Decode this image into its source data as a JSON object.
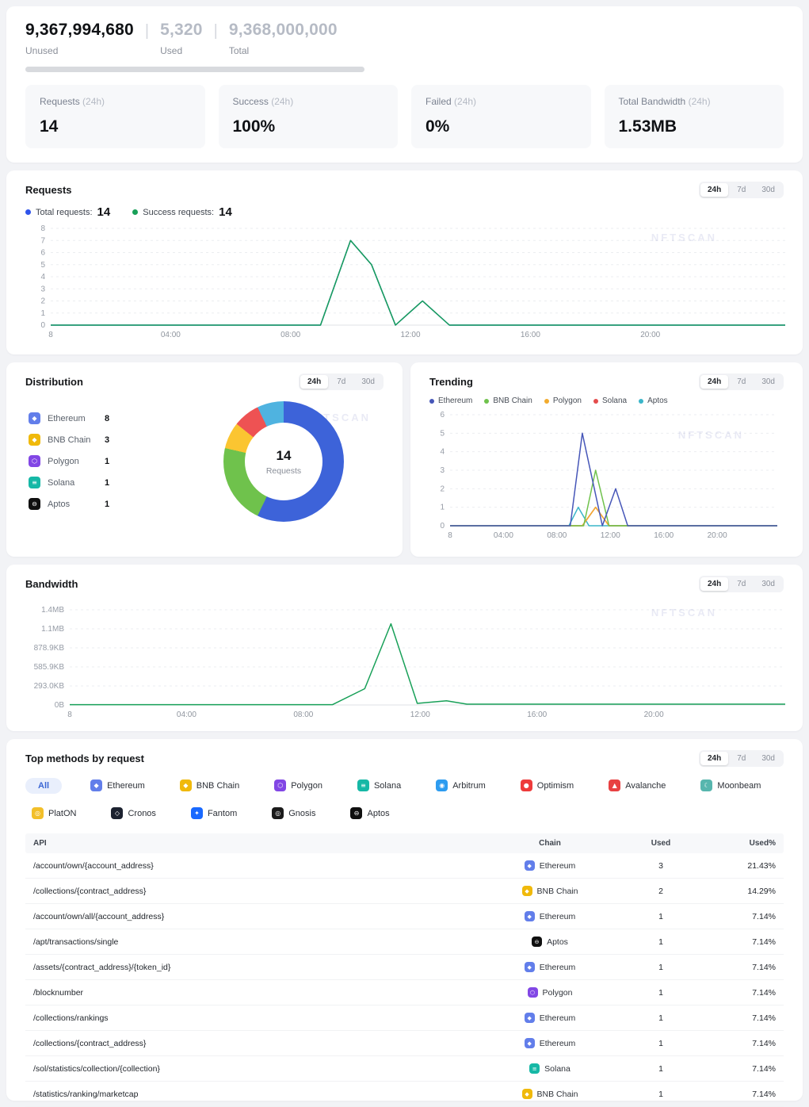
{
  "time_ranges": [
    "24h",
    "7d",
    "30d"
  ],
  "quota": {
    "unused": "9,367,994,680",
    "unused_label": "Unused",
    "used": "5,320",
    "used_label": "Used",
    "total": "9,368,000,000",
    "total_label": "Total",
    "separator": "|",
    "used_percent": 0
  },
  "stats": [
    {
      "label": "Requests",
      "suffix": " (24h)",
      "value": "14"
    },
    {
      "label": "Success",
      "suffix": " (24h)",
      "value": "100%"
    },
    {
      "label": "Failed",
      "suffix": " (24h)",
      "value": "0%"
    },
    {
      "label": "Total Bandwidth",
      "suffix": " (24h)",
      "value": "1.53MB"
    }
  ],
  "requests_panel": {
    "title": "Requests",
    "active_range": "24h",
    "watermark": "NFTSCAN",
    "legend": [
      {
        "label": "Total requests:",
        "value": "14",
        "color": "#2f54eb"
      },
      {
        "label": "Success requests:",
        "value": "14",
        "color": "#18a058"
      }
    ],
    "chart": {
      "type": "line",
      "x_range": [
        0,
        24.5
      ],
      "y_range": [
        0,
        8
      ],
      "x_ticks": [
        {
          "v": 0,
          "label": "8"
        },
        {
          "v": 4,
          "label": "04:00"
        },
        {
          "v": 8,
          "label": "08:00"
        },
        {
          "v": 12,
          "label": "12:00"
        },
        {
          "v": 16,
          "label": "16:00"
        },
        {
          "v": 20,
          "label": "20:00"
        }
      ],
      "y_ticks": [
        {
          "v": 0,
          "label": "0"
        },
        {
          "v": 1,
          "label": "1"
        },
        {
          "v": 2,
          "label": "2"
        },
        {
          "v": 3,
          "label": "3"
        },
        {
          "v": 4,
          "label": "4"
        },
        {
          "v": 5,
          "label": "5"
        },
        {
          "v": 6,
          "label": "6"
        },
        {
          "v": 7,
          "label": "7"
        },
        {
          "v": 8,
          "label": "8"
        }
      ],
      "series": [
        {
          "name": "Total requests",
          "color": "#2f54eb",
          "points": [
            [
              0,
              0
            ],
            [
              9,
              0
            ],
            [
              10,
              7
            ],
            [
              10.7,
              5
            ],
            [
              11.5,
              0
            ],
            [
              12.4,
              2
            ],
            [
              13.3,
              0
            ],
            [
              24.5,
              0
            ]
          ]
        },
        {
          "name": "Success requests",
          "color": "#18a058",
          "points": [
            [
              0,
              0
            ],
            [
              9,
              0
            ],
            [
              10,
              7
            ],
            [
              10.7,
              5
            ],
            [
              11.5,
              0
            ],
            [
              12.4,
              2
            ],
            [
              13.3,
              0
            ],
            [
              24.5,
              0
            ]
          ]
        }
      ]
    }
  },
  "distribution_panel": {
    "title": "Distribution",
    "active_range": "24h",
    "watermark": "NFTSCAN",
    "center_value": "14",
    "center_label": "Requests",
    "chart": {
      "type": "pie",
      "items": [
        {
          "name": "Ethereum",
          "value": 8,
          "slice_color": "#3d63d9"
        },
        {
          "name": "BNB Chain",
          "value": 3,
          "slice_color": "#6fc24c"
        },
        {
          "name": "Polygon",
          "value": 1,
          "slice_color": "#fbc531"
        },
        {
          "name": "Solana",
          "value": 1,
          "slice_color": "#ee5253"
        },
        {
          "name": "Aptos",
          "value": 1,
          "slice_color": "#4fb3e0"
        }
      ]
    }
  },
  "trending_panel": {
    "title": "Trending",
    "active_range": "24h",
    "watermark": "NFTSCAN",
    "chart": {
      "type": "line",
      "x_range": [
        0,
        24.5
      ],
      "y_range": [
        0,
        6
      ],
      "x_ticks": [
        {
          "v": 0,
          "label": "8"
        },
        {
          "v": 4,
          "label": "04:00"
        },
        {
          "v": 8,
          "label": "08:00"
        },
        {
          "v": 12,
          "label": "12:00"
        },
        {
          "v": 16,
          "label": "16:00"
        },
        {
          "v": 20,
          "label": "20:00"
        }
      ],
      "y_ticks": [
        {
          "v": 0,
          "label": "0"
        },
        {
          "v": 1,
          "label": "1"
        },
        {
          "v": 2,
          "label": "2"
        },
        {
          "v": 3,
          "label": "3"
        },
        {
          "v": 4,
          "label": "4"
        },
        {
          "v": 5,
          "label": "5"
        },
        {
          "v": 6,
          "label": "6"
        }
      ],
      "series": [
        {
          "name": "Solana",
          "color": "#e44c4c",
          "points": [
            [
              0,
              0
            ],
            [
              9.9,
              0
            ],
            [
              10.9,
              1
            ],
            [
              11.9,
              0
            ],
            [
              24.5,
              0
            ]
          ]
        },
        {
          "name": "Aptos",
          "color": "#3ab5c9",
          "points": [
            [
              0,
              0
            ],
            [
              8.9,
              0
            ],
            [
              9.6,
              1
            ],
            [
              10.4,
              0
            ],
            [
              24.5,
              0
            ]
          ]
        },
        {
          "name": "Polygon",
          "color": "#f2ab2e",
          "points": [
            [
              0,
              0
            ],
            [
              9.9,
              0
            ],
            [
              10.9,
              1
            ],
            [
              11.9,
              0
            ],
            [
              24.5,
              0
            ]
          ]
        },
        {
          "name": "BNB Chain",
          "color": "#6fc24c",
          "points": [
            [
              0,
              0
            ],
            [
              10,
              0
            ],
            [
              10.9,
              3
            ],
            [
              11.9,
              0
            ],
            [
              24.5,
              0
            ]
          ]
        },
        {
          "name": "Ethereum",
          "color": "#4656b8",
          "points": [
            [
              0,
              0
            ],
            [
              9,
              0
            ],
            [
              9.9,
              5
            ],
            [
              11.4,
              0
            ],
            [
              12.4,
              2
            ],
            [
              13.3,
              0
            ],
            [
              24.5,
              0
            ]
          ]
        }
      ],
      "legend_order": [
        "Ethereum",
        "BNB Chain",
        "Polygon",
        "Solana",
        "Aptos"
      ]
    }
  },
  "bandwidth_panel": {
    "title": "Bandwidth",
    "active_range": "24h",
    "watermark": "NFTSCAN",
    "chart": {
      "type": "line",
      "x_range": [
        0,
        24.5
      ],
      "y_range": [
        0,
        1465
      ],
      "x_ticks": [
        {
          "v": 0,
          "label": "8"
        },
        {
          "v": 4,
          "label": "04:00"
        },
        {
          "v": 8,
          "label": "08:00"
        },
        {
          "v": 12,
          "label": "12:00"
        },
        {
          "v": 16,
          "label": "16:00"
        },
        {
          "v": 20,
          "label": "20:00"
        }
      ],
      "y_ticks": [
        {
          "v": 0,
          "label": "0B"
        },
        {
          "v": 293,
          "label": "293.0KB"
        },
        {
          "v": 586,
          "label": "585.9KB"
        },
        {
          "v": 879,
          "label": "878.9KB"
        },
        {
          "v": 1172,
          "label": "1.1MB"
        },
        {
          "v": 1465,
          "label": "1.4MB"
        }
      ],
      "series": [
        {
          "name": "Bandwidth",
          "color": "#18a058",
          "points": [
            [
              0,
              5
            ],
            [
              9,
              5
            ],
            [
              10.1,
              250
            ],
            [
              11,
              1250
            ],
            [
              11.9,
              25
            ],
            [
              12.9,
              65
            ],
            [
              13.6,
              12
            ],
            [
              24.5,
              12
            ]
          ]
        }
      ]
    }
  },
  "methods_panel": {
    "title": "Top methods by request",
    "active_range": "24h",
    "chips": [
      {
        "label": "All",
        "active": true
      },
      {
        "label": "Ethereum"
      },
      {
        "label": "BNB Chain"
      },
      {
        "label": "Polygon"
      },
      {
        "label": "Solana"
      },
      {
        "label": "Arbitrum"
      },
      {
        "label": "Optimism"
      },
      {
        "label": "Avalanche"
      },
      {
        "label": "Moonbeam"
      },
      {
        "label": "PlatON"
      },
      {
        "label": "Cronos"
      },
      {
        "label": "Fantom"
      },
      {
        "label": "Gnosis"
      },
      {
        "label": "Aptos"
      }
    ],
    "table": {
      "headers": [
        "API",
        "Chain",
        "Used",
        "Used%"
      ],
      "rows": [
        {
          "api": "/account/own/{account_address}",
          "chain": "Ethereum",
          "used": "3",
          "used_pct": "21.43%"
        },
        {
          "api": "/collections/{contract_address}",
          "chain": "BNB Chain",
          "used": "2",
          "used_pct": "14.29%"
        },
        {
          "api": "/account/own/all/{account_address}",
          "chain": "Ethereum",
          "used": "1",
          "used_pct": "7.14%"
        },
        {
          "api": "/apt/transactions/single",
          "chain": "Aptos",
          "used": "1",
          "used_pct": "7.14%"
        },
        {
          "api": "/assets/{contract_address}/{token_id}",
          "chain": "Ethereum",
          "used": "1",
          "used_pct": "7.14%"
        },
        {
          "api": "/blocknumber",
          "chain": "Polygon",
          "used": "1",
          "used_pct": "7.14%"
        },
        {
          "api": "/collections/rankings",
          "chain": "Ethereum",
          "used": "1",
          "used_pct": "7.14%"
        },
        {
          "api": "/collections/{contract_address}",
          "chain": "Ethereum",
          "used": "1",
          "used_pct": "7.14%"
        },
        {
          "api": "/sol/statistics/collection/{collection}",
          "chain": "Solana",
          "used": "1",
          "used_pct": "7.14%"
        },
        {
          "api": "/statistics/ranking/marketcap",
          "chain": "BNB Chain",
          "used": "1",
          "used_pct": "7.14%"
        }
      ]
    }
  },
  "chain_icons": {
    "Ethereum": {
      "color": "#627eea",
      "glyph": "◆"
    },
    "BNB Chain": {
      "color": "#f0b90b",
      "glyph": "◆"
    },
    "Polygon": {
      "color": "#8247e5",
      "glyph": "⬡"
    },
    "Solana": {
      "color": "#16b8a6",
      "glyph": "≡"
    },
    "Arbitrum": {
      "color": "#2d9cf0",
      "glyph": "◉"
    },
    "Optimism": {
      "color": "#ee3b3b",
      "glyph": "●"
    },
    "Avalanche": {
      "color": "#e84142",
      "glyph": "▲"
    },
    "Moonbeam": {
      "color": "#57b6ae",
      "glyph": "☾"
    },
    "PlatON": {
      "color": "#f2bf2a",
      "glyph": "◎"
    },
    "Cronos": {
      "color": "#1c2230",
      "glyph": "◇"
    },
    "Fantom": {
      "color": "#1969ff",
      "glyph": "✦"
    },
    "Gnosis": {
      "color": "#1b1b1b",
      "glyph": "◎"
    },
    "Aptos": {
      "color": "#101010",
      "glyph": "⊖"
    }
  }
}
